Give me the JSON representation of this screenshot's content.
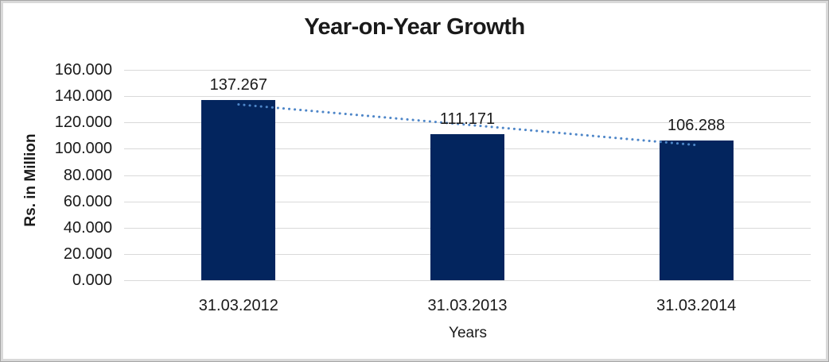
{
  "chart_data": {
    "type": "bar",
    "title": "Year-on-Year Growth",
    "xlabel": "Years",
    "ylabel": "Rs. in Million",
    "categories": [
      "31.03.2012",
      "31.03.2013",
      "31.03.2014"
    ],
    "values": [
      137.267,
      111.171,
      106.288
    ],
    "data_labels": [
      "137.267",
      "111.171",
      "106.288"
    ],
    "ylim": [
      0,
      160
    ],
    "y_tick_step": 20,
    "y_tick_labels": [
      "160.000",
      "140.000",
      "120.000",
      "100.000",
      "80.000",
      "60.000",
      "40.000",
      "20.000",
      "0.000"
    ],
    "grid": true,
    "legend": "none",
    "colors": {
      "bar": "#03255E",
      "trendline": "#4E86C8",
      "gridline": "#D9D9D9",
      "text": "#1A1A1A",
      "frame_outer": "#A6A6A6",
      "frame_inner": "#D9D9D9"
    },
    "trendline": {
      "type": "linear",
      "style": "dotted",
      "start_value": 133.7,
      "end_value": 102.8
    }
  }
}
